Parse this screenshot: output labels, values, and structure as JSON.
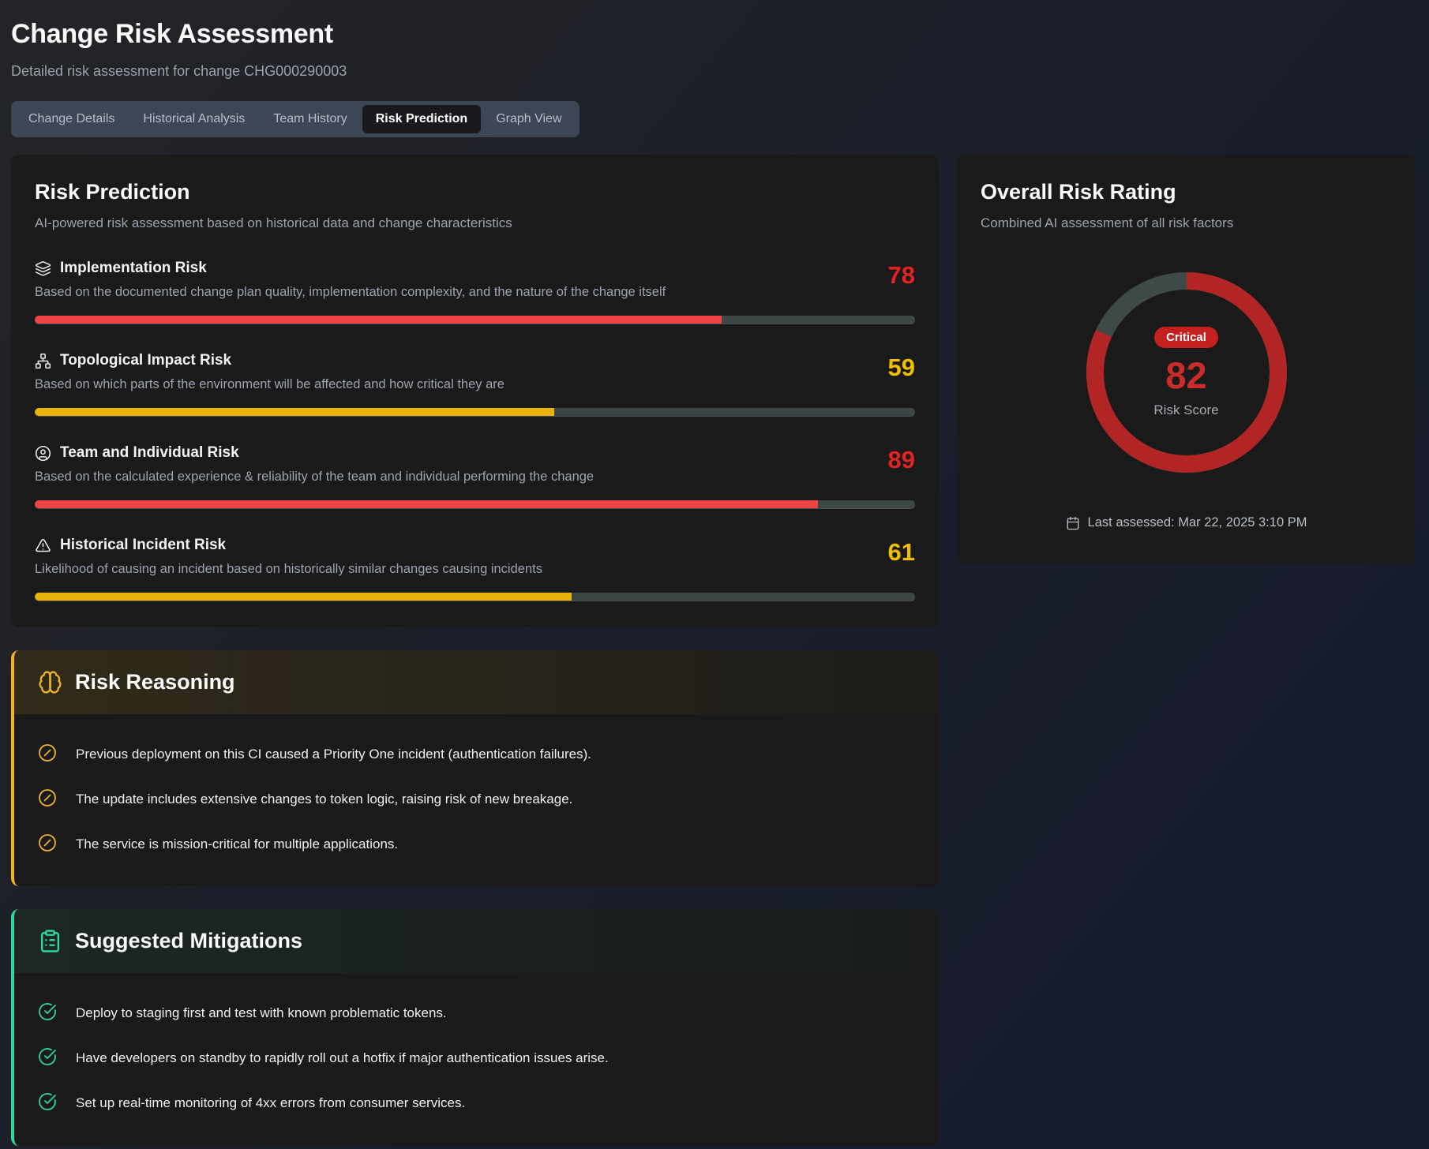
{
  "header": {
    "title": "Change Risk Assessment",
    "subtitle": "Detailed risk assessment for change CHG000290003"
  },
  "tabs": [
    {
      "label": "Change Details",
      "active": false
    },
    {
      "label": "Historical Analysis",
      "active": false
    },
    {
      "label": "Team History",
      "active": false
    },
    {
      "label": "Risk Prediction",
      "active": true
    },
    {
      "label": "Graph View",
      "active": false
    }
  ],
  "risk_prediction": {
    "title": "Risk Prediction",
    "subtitle": "AI-powered risk assessment based on historical data and change characteristics",
    "factors": [
      {
        "icon": "layers-icon",
        "label": "Implementation Risk",
        "description": "Based on the documented change plan quality, implementation complexity, and the nature of the change itself",
        "score": 78,
        "level": "high"
      },
      {
        "icon": "network-icon",
        "label": "Topological Impact Risk",
        "description": "Based on which parts of the environment will be affected and how critical they are",
        "score": 59,
        "level": "medium"
      },
      {
        "icon": "user-circle-icon",
        "label": "Team and Individual Risk",
        "description": "Based on the calculated experience & reliability of the team and individual performing the change",
        "score": 89,
        "level": "high"
      },
      {
        "icon": "triangle-alert-icon",
        "label": "Historical Incident Risk",
        "description": "Likelihood of causing an incident based on historically similar changes causing incidents",
        "score": 61,
        "level": "medium"
      }
    ]
  },
  "overall": {
    "title": "Overall Risk Rating",
    "subtitle": "Combined AI assessment of all risk factors",
    "badge": "Critical",
    "score": 82,
    "score_label": "Risk Score",
    "last_assessed": "Last assessed: Mar 22, 2025 3:10 PM"
  },
  "reasoning": {
    "title": "Risk Reasoning",
    "items": [
      "Previous deployment on this CI caused a Priority One incident (authentication failures).",
      "The update includes extensive changes to token logic, raising risk of new breakage.",
      "The service is mission-critical for multiple applications."
    ]
  },
  "mitigations": {
    "title": "Suggested Mitigations",
    "items": [
      "Deploy to staging first and test with known problematic tokens.",
      "Have developers on standby to rapidly roll out a hotfix if major authentication issues arise.",
      "Set up real-time monitoring of 4xx errors from consumer services."
    ]
  },
  "colors": {
    "risk_high_text": "#e32222",
    "risk_high_bar": "#ef4444",
    "risk_medium_text": "#f0c000",
    "risk_medium_bar": "#eab308",
    "gauge_red": "#b22525",
    "gauge_track": "#3e4a48",
    "badge_red": "#c42020",
    "amber_accent": "#f0b429",
    "green_accent": "#2fd79b"
  }
}
